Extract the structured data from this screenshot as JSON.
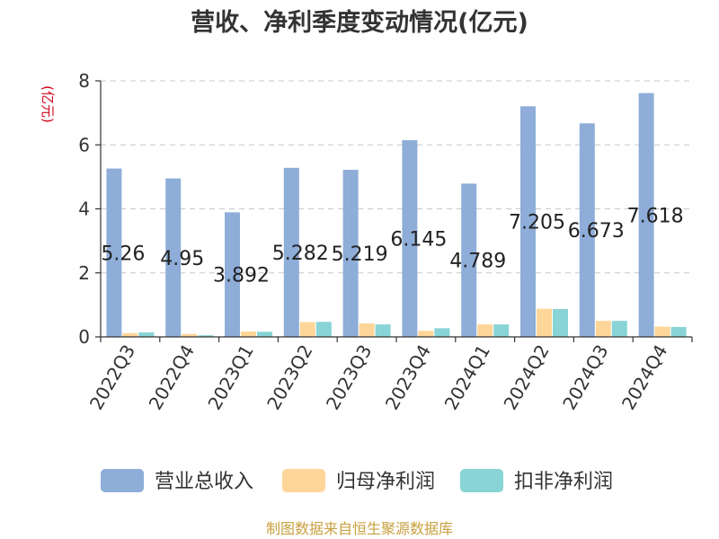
{
  "chart_data": {
    "type": "bar",
    "title": "营收、净利季度变动情况(亿元)",
    "unit_label": "(亿元)",
    "categories": [
      "2022Q3",
      "2022Q4",
      "2023Q1",
      "2023Q2",
      "2023Q3",
      "2023Q4",
      "2024Q1",
      "2024Q2",
      "2024Q3",
      "2024Q4"
    ],
    "series": [
      {
        "name": "营业总收入",
        "color": "#8eadd8",
        "values": [
          5.26,
          4.95,
          3.892,
          5.282,
          5.219,
          6.145,
          4.789,
          7.205,
          6.673,
          7.618
        ]
      },
      {
        "name": "归母净利润",
        "color": "#ffd699",
        "values": [
          0.12,
          0.09,
          0.17,
          0.46,
          0.42,
          0.19,
          0.39,
          0.88,
          0.5,
          0.32
        ]
      },
      {
        "name": "扣非净利润",
        "color": "#88d4d6",
        "values": [
          0.14,
          0.05,
          0.16,
          0.47,
          0.39,
          0.27,
          0.39,
          0.87,
          0.5,
          0.31
        ]
      }
    ],
    "value_labels": [
      "5.26",
      "4.95",
      "3.892",
      "5.282",
      "5.219",
      "6.145",
      "4.789",
      "7.205",
      "6.673",
      "7.618"
    ],
    "ylim": [
      0,
      8
    ],
    "yticks": [
      0,
      2,
      4,
      6,
      8
    ],
    "grid": true,
    "legend_position": "bottom"
  },
  "source": "制图数据来自恒生聚源数据库"
}
